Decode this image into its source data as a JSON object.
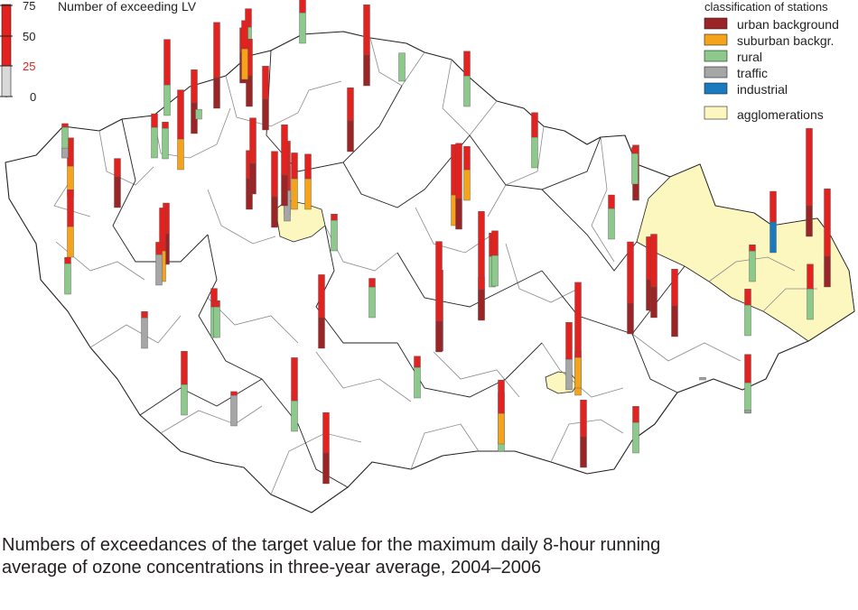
{
  "scale": {
    "title": "Number of exceeding LV",
    "ticks": [
      "75",
      "50",
      "25",
      "0"
    ],
    "limit_color": "#e3221f"
  },
  "legend": {
    "title": "classification of stations",
    "items": [
      {
        "label": "urban background",
        "color": "#9b2426"
      },
      {
        "label": "suburban backgr.",
        "color": "#f4a31b"
      },
      {
        "label": "rural",
        "color": "#8dc98b"
      },
      {
        "label": "traffic",
        "color": "#a6a6a6"
      },
      {
        "label": "industrial",
        "color": "#1a7abf"
      }
    ],
    "agglomerations": {
      "label": "agglomerations",
      "color": "#fbf7bf"
    }
  },
  "colors": {
    "exceedance": "#e3221f",
    "region_border": "#231f20",
    "district_border": "#8a8a8a"
  },
  "caption": {
    "line1": "Numbers of exceedances of the target value for the maximum daily 8-hour running",
    "line2": "average of ozone concentrations in three-year average, 2004–2006"
  },
  "stations": [
    {
      "type": "urban background",
      "value": 52
    },
    {
      "type": "suburban backgr.",
      "value": 65
    },
    {
      "type": "urban background",
      "value": 70
    },
    {
      "type": "rural",
      "value": 8
    },
    {
      "type": "urban background",
      "value": 45
    },
    {
      "type": "rural",
      "value": 40
    },
    {
      "type": "urban background",
      "value": 55
    },
    {
      "type": "urban background",
      "value": 52
    },
    {
      "type": "rural",
      "value": 48
    },
    {
      "type": "rural",
      "value": 62
    },
    {
      "type": "rural",
      "value": 30
    },
    {
      "type": "urban background",
      "value": 66
    },
    {
      "type": "rural",
      "value": 23
    },
    {
      "type": "suburban backgr.",
      "value": 48
    },
    {
      "type": "rural",
      "value": 45
    },
    {
      "type": "rural",
      "value": 36
    },
    {
      "type": "suburban backgr.",
      "value": 48
    },
    {
      "type": "urban background",
      "value": 50
    },
    {
      "type": "urban background",
      "value": 40
    },
    {
      "type": "suburban backgr.",
      "value": 55
    },
    {
      "type": "rural",
      "value": 28
    },
    {
      "type": "urban background",
      "value": 52
    },
    {
      "type": "urban background",
      "value": 62
    },
    {
      "type": "suburban backgr.",
      "value": 60
    },
    {
      "type": "traffic",
      "value": 45
    },
    {
      "type": "urban background",
      "value": 66
    },
    {
      "type": "suburban backgr.",
      "value": 46
    },
    {
      "type": "urban background",
      "value": 48
    },
    {
      "type": "rural",
      "value": 30
    },
    {
      "type": "suburban backgr.",
      "value": 45
    },
    {
      "type": "rural",
      "value": 40
    },
    {
      "type": "urban background",
      "value": 62
    },
    {
      "type": "suburban backgr.",
      "value": 66
    },
    {
      "type": "suburban backgr.",
      "value": 44
    },
    {
      "type": "rural",
      "value": 45
    },
    {
      "type": "urban background",
      "value": 70
    },
    {
      "type": "suburban backgr.",
      "value": 60
    },
    {
      "type": "traffic",
      "value": 35
    },
    {
      "type": "rural",
      "value": 30
    },
    {
      "type": "rural",
      "value": 32
    },
    {
      "type": "rural",
      "value": 34
    },
    {
      "type": "urban background",
      "value": 66
    },
    {
      "type": "rural",
      "value": 44
    },
    {
      "type": "urban background",
      "value": 88
    },
    {
      "type": "urban background",
      "value": 45
    },
    {
      "type": "rural",
      "value": 30
    },
    {
      "type": "urban background",
      "value": 60
    },
    {
      "type": "rural",
      "value": 52
    },
    {
      "type": "suburban backgr.",
      "value": 92
    },
    {
      "type": "traffic",
      "value": 55
    },
    {
      "type": "urban background",
      "value": 90
    },
    {
      "type": "urban background",
      "value": 55
    },
    {
      "type": "urban background",
      "value": 68
    },
    {
      "type": "industrial",
      "value": 50
    },
    {
      "type": "urban background",
      "value": 88
    },
    {
      "type": "rural",
      "value": 30
    },
    {
      "type": "rural",
      "value": 45
    },
    {
      "type": "urban background",
      "value": 80
    },
    {
      "type": "rural",
      "value": 38
    },
    {
      "type": "traffic",
      "value": 30
    },
    {
      "type": "rural",
      "value": 48
    },
    {
      "type": "urban background",
      "value": 58
    },
    {
      "type": "rural",
      "value": 60
    },
    {
      "type": "rural",
      "value": 58
    },
    {
      "type": "urban background",
      "value": 55
    },
    {
      "type": "rural",
      "value": 38
    },
    {
      "type": "suburban backgr.",
      "value": 42
    },
    {
      "type": "traffic",
      "value": 28
    },
    {
      "type": "urban background",
      "value": 60
    },
    {
      "type": "rural",
      "value": 30
    },
    {
      "type": "urban background",
      "value": 75
    },
    {
      "type": "suburban backgr.",
      "value": 30
    },
    {
      "type": "urban background",
      "value": 35
    },
    {
      "type": "rural",
      "value": 45
    },
    {
      "type": "traffic",
      "value": 8
    },
    {
      "type": "traffic",
      "value": 2
    },
    {
      "type": "rural",
      "value": 36
    },
    {
      "type": "traffic",
      "value": 2
    }
  ]
}
